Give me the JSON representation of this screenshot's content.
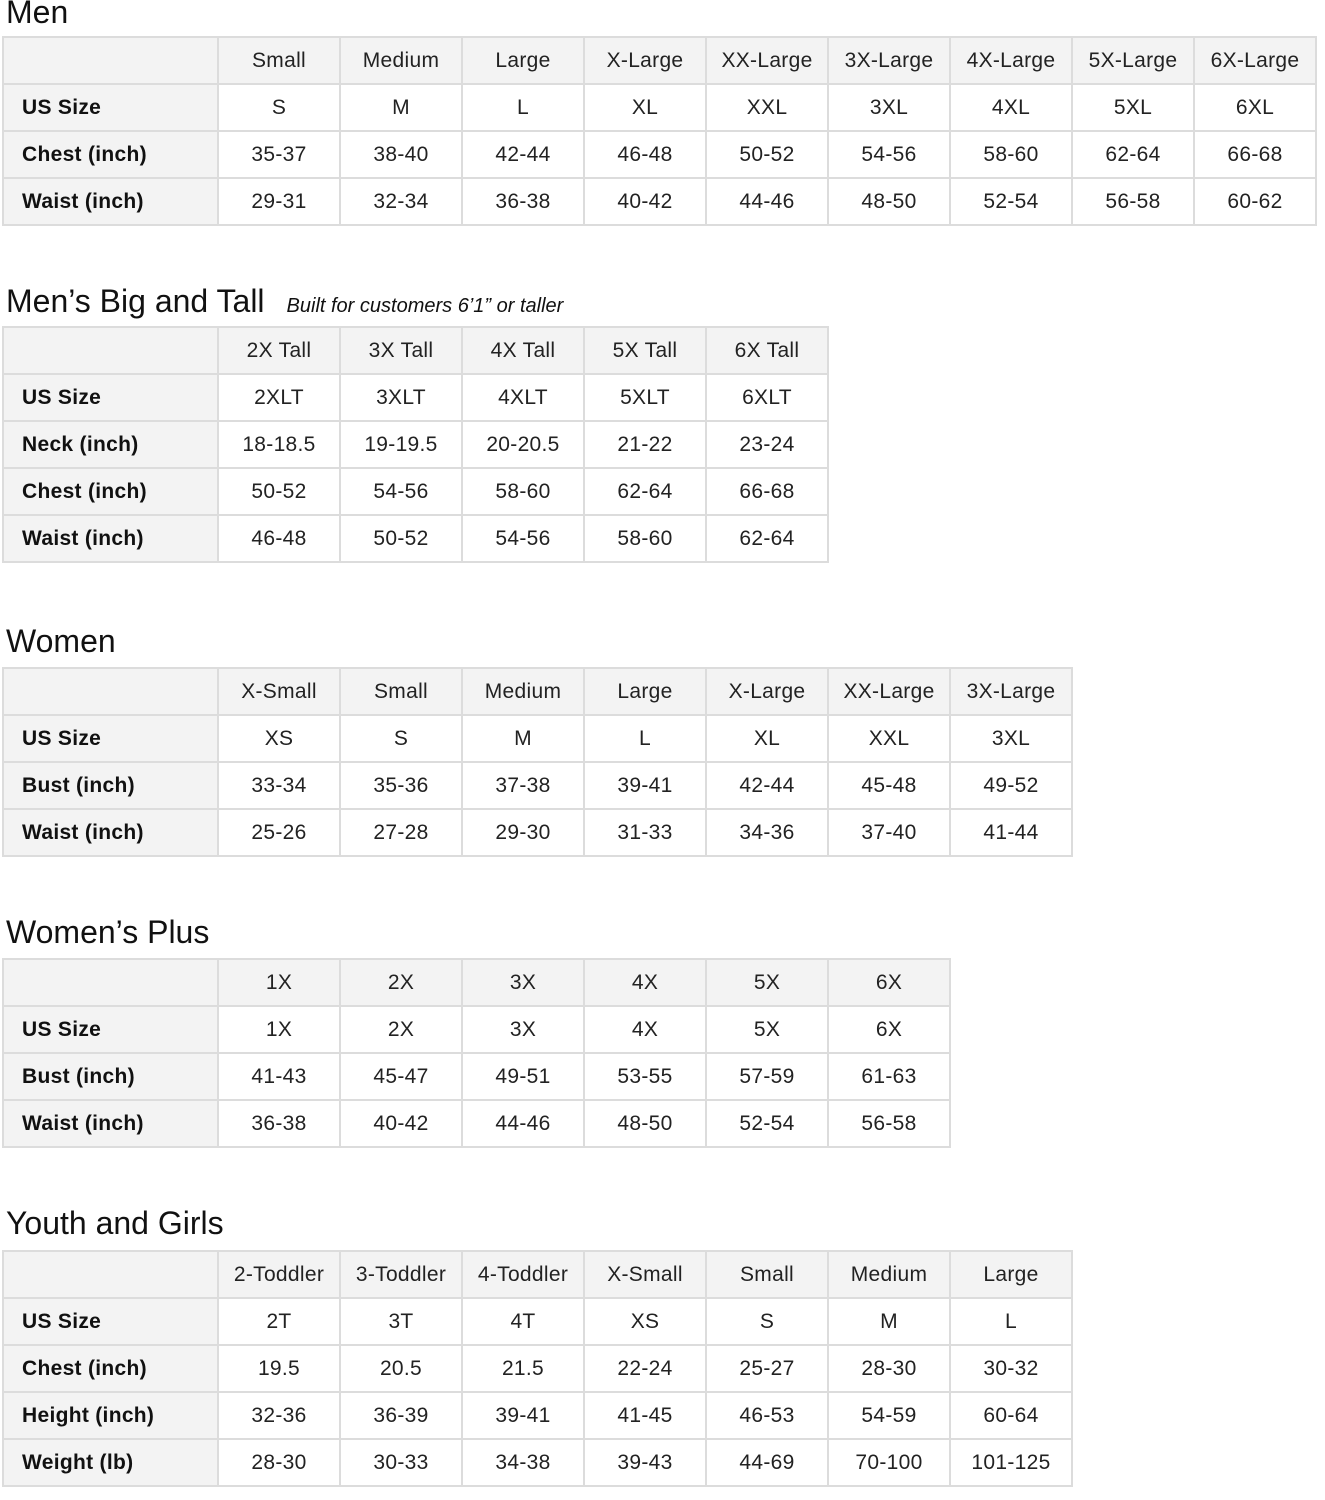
{
  "sections": [
    {
      "title": "Men",
      "subtitle": "",
      "columns": [
        "",
        "Small",
        "Medium",
        "Large",
        "X-Large",
        "XX-Large",
        "3X-Large",
        "4X-Large",
        "5X-Large",
        "6X-Large"
      ],
      "rows": [
        [
          "US Size",
          "S",
          "M",
          "L",
          "XL",
          "XXL",
          "3XL",
          "4XL",
          "5XL",
          "6XL"
        ],
        [
          "Chest (inch)",
          "35-37",
          "38-40",
          "42-44",
          "46-48",
          "50-52",
          "54-56",
          "58-60",
          "62-64",
          "66-68"
        ],
        [
          "Waist (inch)",
          "29-31",
          "32-34",
          "36-38",
          "40-42",
          "44-46",
          "48-50",
          "52-54",
          "56-58",
          "60-62"
        ]
      ]
    },
    {
      "title": "Men’s Big and Tall",
      "subtitle": "Built for customers 6’1” or taller",
      "columns": [
        "",
        "2X Tall",
        "3X Tall",
        "4X Tall",
        "5X Tall",
        "6X Tall"
      ],
      "rows": [
        [
          "US Size",
          "2XLT",
          "3XLT",
          "4XLT",
          "5XLT",
          "6XLT"
        ],
        [
          "Neck (inch)",
          "18-18.5",
          "19-19.5",
          "20-20.5",
          "21-22",
          "23-24"
        ],
        [
          "Chest (inch)",
          "50-52",
          "54-56",
          "58-60",
          "62-64",
          "66-68"
        ],
        [
          "Waist (inch)",
          "46-48",
          "50-52",
          "54-56",
          "58-60",
          "62-64"
        ]
      ]
    },
    {
      "title": "Women",
      "subtitle": "",
      "columns": [
        "",
        "X-Small",
        "Small",
        "Medium",
        "Large",
        "X-Large",
        "XX-Large",
        "3X-Large"
      ],
      "rows": [
        [
          "US Size",
          "XS",
          "S",
          "M",
          "L",
          "XL",
          "XXL",
          "3XL"
        ],
        [
          "Bust (inch)",
          "33-34",
          "35-36",
          "37-38",
          "39-41",
          "42-44",
          "45-48",
          "49-52"
        ],
        [
          "Waist (inch)",
          "25-26",
          "27-28",
          "29-30",
          "31-33",
          "34-36",
          "37-40",
          "41-44"
        ]
      ]
    },
    {
      "title": "Women’s  Plus",
      "subtitle": "",
      "columns": [
        "",
        "1X",
        "2X",
        "3X",
        "4X",
        "5X",
        "6X"
      ],
      "rows": [
        [
          "US Size",
          "1X",
          "2X",
          "3X",
          "4X",
          "5X",
          "6X"
        ],
        [
          "Bust (inch)",
          "41-43",
          "45-47",
          "49-51",
          "53-55",
          "57-59",
          "61-63"
        ],
        [
          "Waist (inch)",
          "36-38",
          "40-42",
          "44-46",
          "48-50",
          "52-54",
          "56-58"
        ]
      ]
    },
    {
      "title": "Youth and Girls",
      "subtitle": "",
      "columns": [
        "",
        "2-Toddler",
        "3-Toddler",
        "4-Toddler",
        "X-Small",
        "Small",
        "Medium",
        "Large"
      ],
      "rows": [
        [
          "US Size",
          "2T",
          "3T",
          "4T",
          "XS",
          "S",
          "M",
          "L"
        ],
        [
          "Chest (inch)",
          "19.5",
          "20.5",
          "21.5",
          "22-24",
          "25-27",
          "28-30",
          "30-32"
        ],
        [
          "Height (inch)",
          "32-36",
          "36-39",
          "39-41",
          "41-45",
          "46-53",
          "54-59",
          "60-64"
        ],
        [
          "Weight (lb)",
          "28-30",
          "30-33",
          "34-38",
          "39-43",
          "44-69",
          "70-100",
          "101-125"
        ]
      ]
    }
  ]
}
